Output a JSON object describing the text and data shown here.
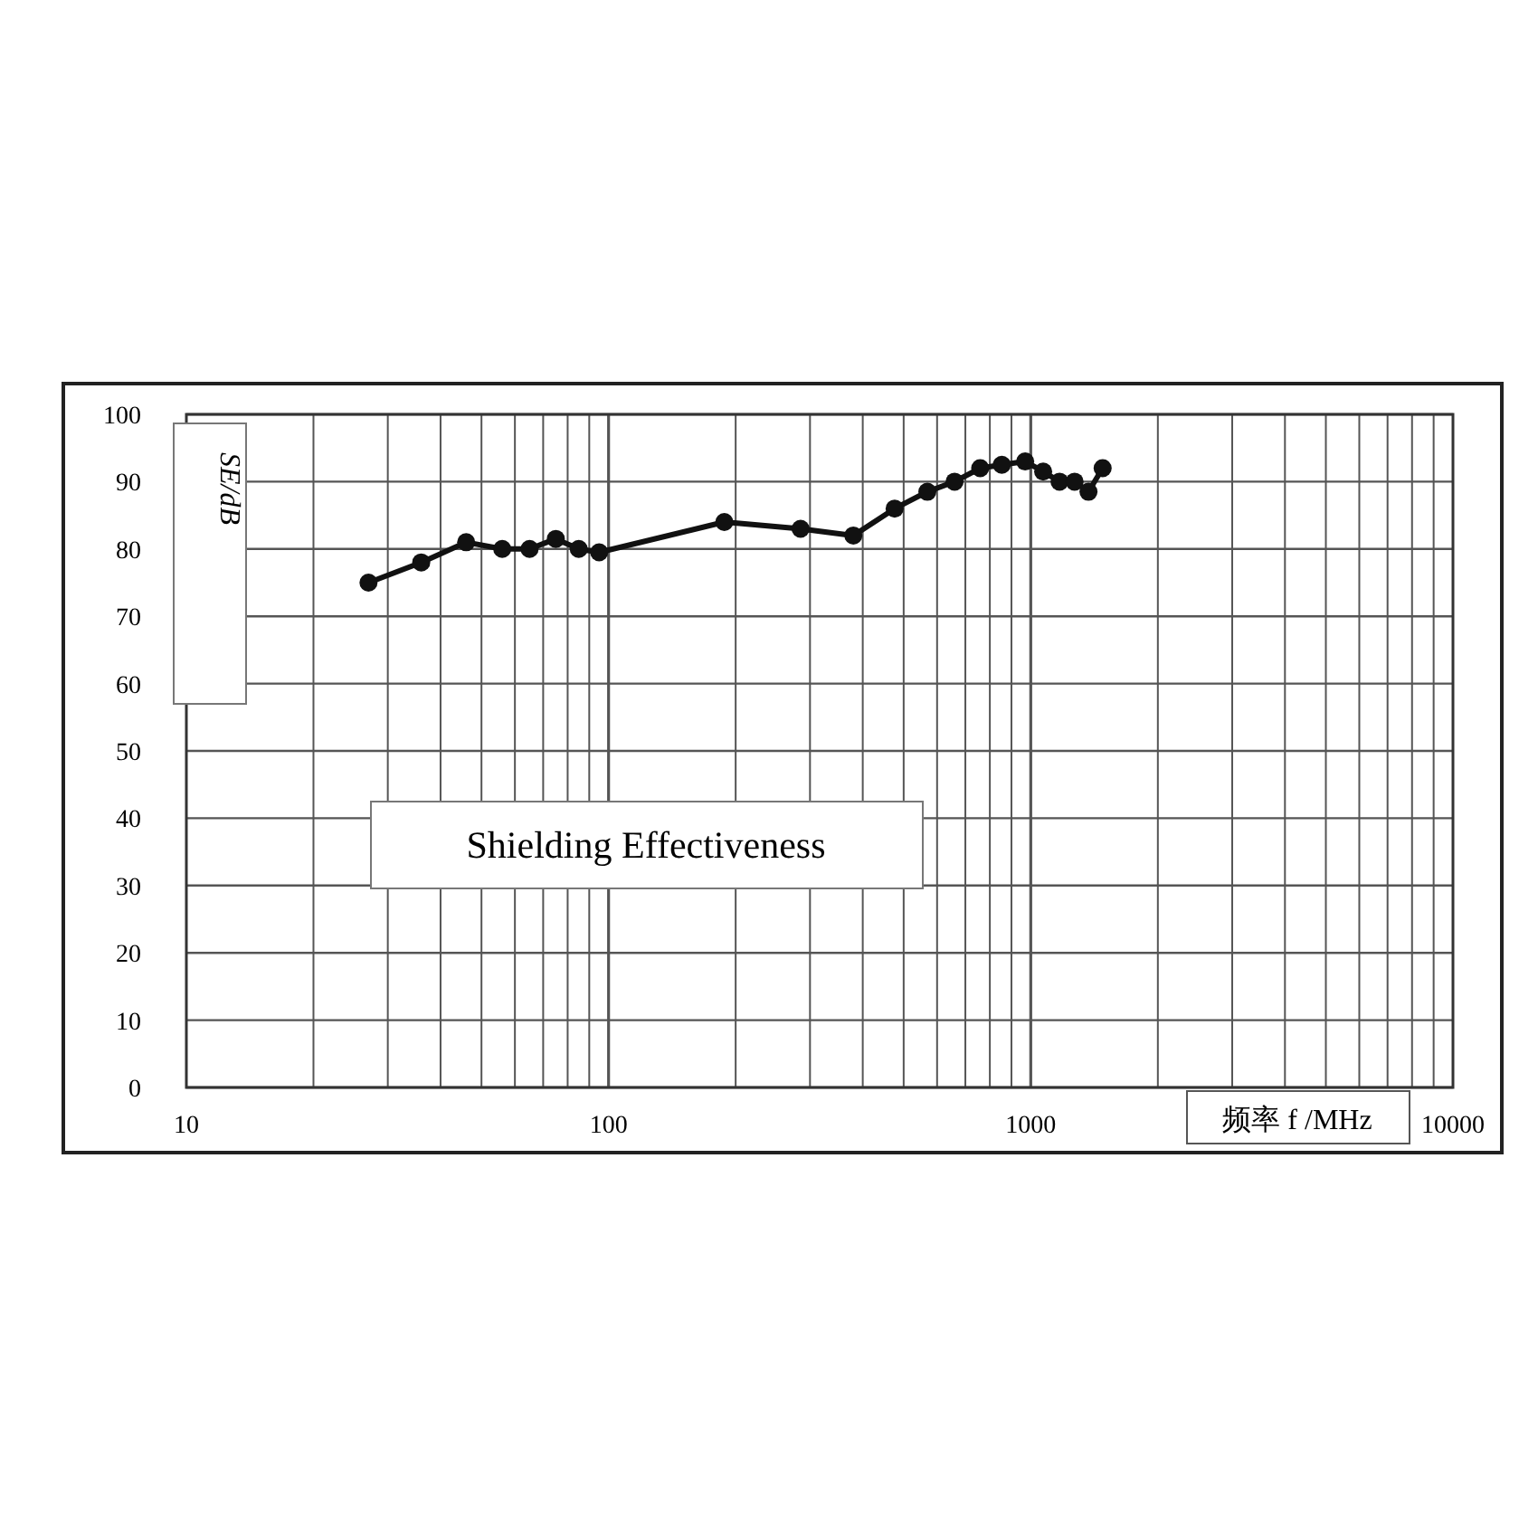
{
  "chart_data": {
    "type": "line",
    "title": "Shielding Effectiveness",
    "ylabel": "SE/dB",
    "xlabel": "频率 f /MHz",
    "log": "x",
    "grid": true,
    "marker": "circle",
    "line_style": "solid",
    "x": [
      27,
      36,
      46,
      56,
      65,
      75,
      85,
      95,
      188,
      285,
      380,
      476,
      569,
      660,
      759,
      854,
      970,
      1070,
      1170,
      1270,
      1370,
      1480
    ],
    "series": [
      {
        "color": "#111111",
        "values": [
          75,
          78,
          81,
          80,
          80,
          81.5,
          80,
          79.5,
          84,
          83,
          82,
          86,
          88.5,
          90,
          92,
          92.5,
          93,
          91.5,
          90,
          90,
          88.5,
          92
        ]
      }
    ],
    "xlim": [
      10,
      10000
    ],
    "xticks": [
      10,
      100,
      1000,
      10000
    ],
    "ylim": [
      0,
      100
    ],
    "yticks": [
      0,
      10,
      20,
      30,
      40,
      50,
      60,
      70,
      80,
      90,
      100
    ]
  }
}
